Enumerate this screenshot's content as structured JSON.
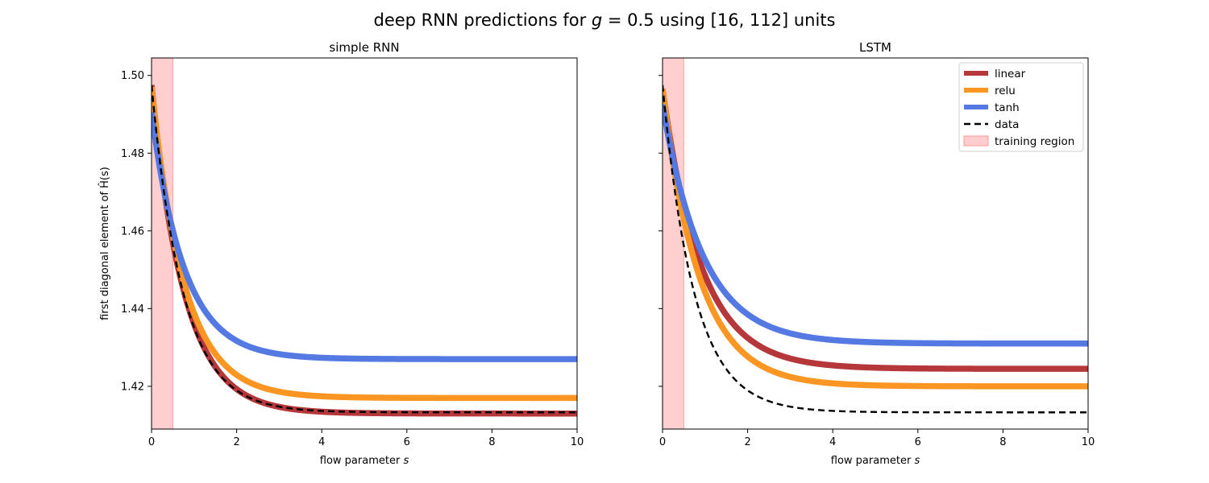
{
  "figure": {
    "title_prefix": "deep RNN predictions for ",
    "title_math_var": "g",
    "title_math_rest": " = 0.5",
    "title_suffix": " using [16, 112] units"
  },
  "chart_data": [
    {
      "type": "line",
      "title": "simple RNN",
      "xlabel": "flow parameter s",
      "ylabel": "first diagonal element of Ĥ(s)",
      "xlim": [
        0,
        10
      ],
      "ylim": [
        1.409,
        1.5045
      ],
      "xticks": [
        0,
        2,
        4,
        6,
        8,
        10
      ],
      "yticks": [
        1.42,
        1.44,
        1.46,
        1.48,
        1.5
      ],
      "ytick_labels": [
        "1.42",
        "1.44",
        "1.46",
        "1.48",
        "1.50"
      ],
      "training_region": [
        0,
        0.5
      ],
      "grid": false,
      "legend": null,
      "series": [
        {
          "name": "linear",
          "color": "#b5373a",
          "style": "solid",
          "model": {
            "start": 1.4975,
            "asymptote": 1.413,
            "rate": 1.3
          }
        },
        {
          "name": "relu",
          "color": "#fb9622",
          "style": "solid",
          "model": {
            "start": 1.497,
            "asymptote": 1.417,
            "rate": 1.3
          }
        },
        {
          "name": "tanh",
          "color": "#5479e3",
          "style": "solid",
          "model": {
            "start": 1.4905,
            "asymptote": 1.427,
            "rate": 1.3
          }
        },
        {
          "name": "data",
          "color": "#000000",
          "style": "dashed",
          "model": {
            "start": 1.4975,
            "asymptote": 1.4133,
            "rate": 1.35
          }
        }
      ]
    },
    {
      "type": "line",
      "title": "LSTM",
      "xlabel": "flow parameter s",
      "ylabel": "",
      "xlim": [
        0,
        10
      ],
      "ylim": [
        1.409,
        1.5045
      ],
      "xticks": [
        0,
        2,
        4,
        6,
        8,
        10
      ],
      "yticks": [
        1.42,
        1.44,
        1.46,
        1.48,
        1.5
      ],
      "ytick_labels": [
        "",
        "",
        "",
        "",
        ""
      ],
      "training_region": [
        0,
        0.5
      ],
      "grid": false,
      "legend": "top-right",
      "series": [
        {
          "name": "linear",
          "color": "#b5373a",
          "style": "solid",
          "model": {
            "start": 1.4965,
            "asymptote": 1.4245,
            "rate": 1.1
          }
        },
        {
          "name": "relu",
          "color": "#fb9622",
          "style": "solid",
          "model": {
            "start": 1.4965,
            "asymptote": 1.42,
            "rate": 1.15
          }
        },
        {
          "name": "tanh",
          "color": "#5479e3",
          "style": "solid",
          "model": {
            "start": 1.4925,
            "asymptote": 1.431,
            "rate": 1.05
          }
        },
        {
          "name": "data",
          "color": "#000000",
          "style": "dashed",
          "model": {
            "start": 1.4975,
            "asymptote": 1.4133,
            "rate": 1.35
          }
        }
      ],
      "legend_entries": [
        {
          "label": "linear",
          "kind": "line",
          "color": "#b5373a"
        },
        {
          "label": "relu",
          "kind": "line",
          "color": "#fb9622"
        },
        {
          "label": "tanh",
          "kind": "line",
          "color": "#5479e3"
        },
        {
          "label": "data",
          "kind": "dashed",
          "color": "#000000"
        },
        {
          "label": "training region",
          "kind": "patch",
          "color": "#ffcccc"
        }
      ]
    }
  ]
}
